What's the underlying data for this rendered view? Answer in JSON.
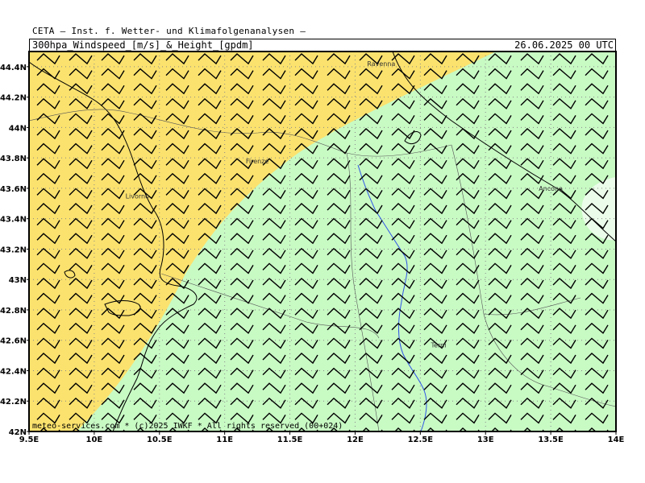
{
  "header": {
    "org": "CETA – Inst. f. Wetter- und Klimafolgenanalysen –",
    "title": "300hpa_Windspeed_[m/s]_&_Height_[gpdm]",
    "valid_time": "26.06.2025 00 UTC"
  },
  "map": {
    "lon_range": [
      9.5,
      14.0
    ],
    "lat_range": [
      42.0,
      44.5
    ],
    "lon_ticks": [
      "9.5E",
      "10E",
      "10.5E",
      "11E",
      "11.5E",
      "12E",
      "12.5E",
      "13E",
      "13.5E",
      "14E"
    ],
    "lat_ticks": [
      "42N",
      "42.2N",
      "42.4N",
      "42.6N",
      "42.8N",
      "43N",
      "43.2N",
      "43.4N",
      "43.6N",
      "43.8N",
      "44N",
      "44.2N",
      "44.4N"
    ],
    "cities": [
      {
        "name": "Ravenna",
        "lon": 12.2,
        "lat": 44.42
      },
      {
        "name": "Firenze",
        "lon": 11.25,
        "lat": 43.78
      },
      {
        "name": "Livorno",
        "lon": 10.33,
        "lat": 43.55
      },
      {
        "name": "Ancona",
        "lon": 13.5,
        "lat": 43.6
      },
      {
        "name": "Terni",
        "lon": 12.64,
        "lat": 42.57
      }
    ],
    "colors": {
      "zone_yellow": "#fbe26e",
      "zone_green": "#c8fac4",
      "zone_light": "#ebfdea",
      "grid": "#888888",
      "river": "#2f55e6",
      "coast": "#000000",
      "barb": "#000000"
    },
    "copyright": "meteo-services.com * (c)2025 IWKF * All rights reserved (00+024)"
  }
}
